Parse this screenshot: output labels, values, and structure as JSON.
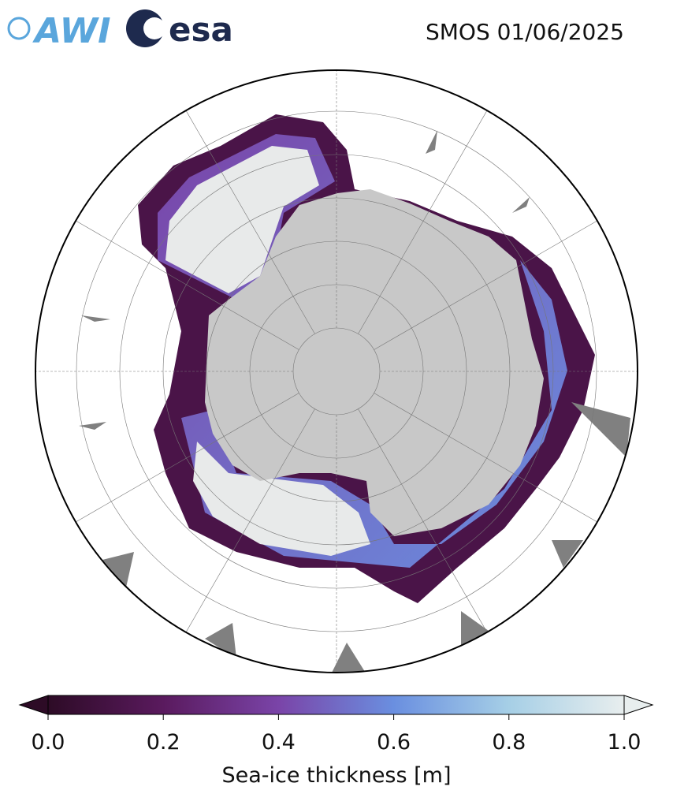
{
  "header": {
    "logos": [
      "AWI",
      "esa"
    ],
    "title": "SMOS 01/06/2025"
  },
  "colorbar": {
    "label": "Sea-ice thickness [m]",
    "lim": [
      0,
      1
    ],
    "ticks": [
      {
        "value": 0,
        "label": "0.0"
      },
      {
        "value": 0.2,
        "label": "0.2"
      },
      {
        "value": 0.4,
        "label": "0.4"
      },
      {
        "value": 0.6,
        "label": "0.6"
      },
      {
        "value": 0.8,
        "label": "0.8"
      },
      {
        "value": 1,
        "label": "1.0"
      }
    ],
    "colors": [
      "#2d0b26",
      "#5a1a5e",
      "#7a44a8",
      "#6a8fe0",
      "#a6cfe6",
      "#e8eeee"
    ]
  }
}
